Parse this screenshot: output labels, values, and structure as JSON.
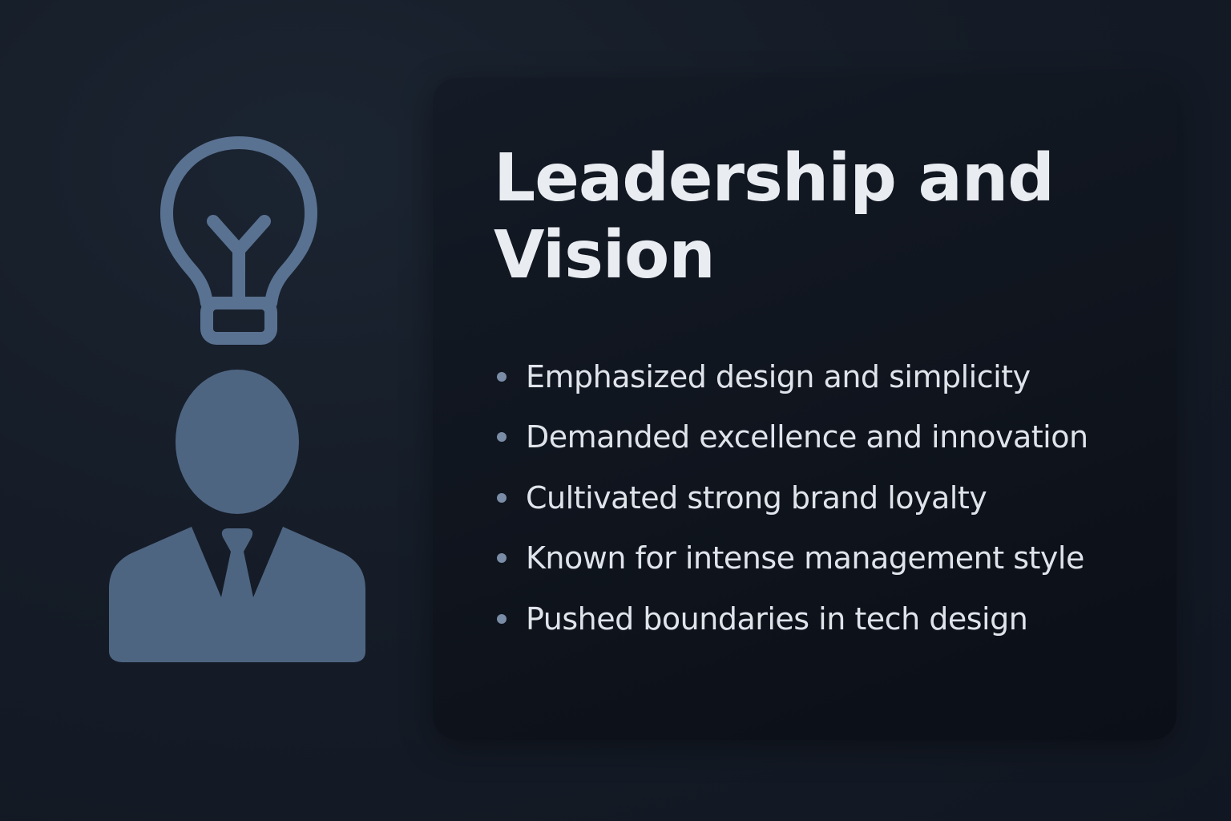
{
  "illustration": {
    "bulb_icon": "lightbulb-icon",
    "person_icon": "businessman-icon",
    "icon_color": "#5a7291"
  },
  "card": {
    "title": "Leadership and Vision",
    "bullets": [
      {
        "text": "Emphasized design and simplicity"
      },
      {
        "text": "Demanded excellence and innovation"
      },
      {
        "text": "Cultivated strong brand loyalty"
      },
      {
        "text": "Known for intense management style"
      },
      {
        "text": "Pushed boundaries in tech design"
      }
    ]
  },
  "colors": {
    "background": "#151c27",
    "card": "#0f141d",
    "title": "#e9ecf1",
    "text": "#dfe3ea",
    "bullet": "#7a8ca6"
  }
}
